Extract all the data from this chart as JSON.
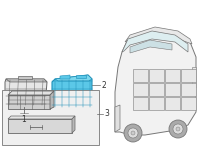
{
  "background_color": "#ffffff",
  "fig_width": 2.0,
  "fig_height": 1.47,
  "dpi": 100,
  "highlight_color": "#5bc8e8",
  "highlight_edge": "#2090b8",
  "gray_face": "#e6e6e6",
  "gray_edge": "#666666",
  "car_face": "#f2f2f2",
  "car_edge": "#777777",
  "box_face": "#f0f0f0",
  "box_edge": "#888888",
  "line_color": "#666666",
  "text_color": "#333333",
  "font_size": 5.5
}
